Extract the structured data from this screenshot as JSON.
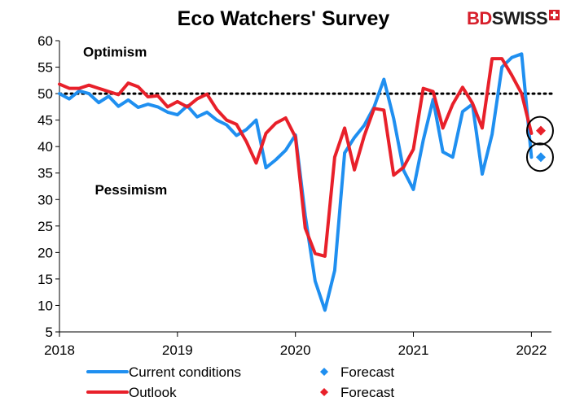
{
  "brand": {
    "logo_bd": "BD",
    "logo_swiss": "SWISS",
    "colors": {
      "red": "#d71f2b",
      "dark": "#1b1b1b"
    }
  },
  "chart_data": {
    "type": "line",
    "title": "Eco Watchers' Survey",
    "xlabel": "",
    "ylabel": "",
    "xlim": [
      2018.0,
      2022.17
    ],
    "ylim": [
      5,
      60
    ],
    "yticks": [
      5,
      10,
      15,
      20,
      25,
      30,
      35,
      40,
      45,
      50,
      55,
      60
    ],
    "xticks": [
      {
        "value": 2018,
        "label": "2018"
      },
      {
        "value": 2019,
        "label": "2019"
      },
      {
        "value": 2020,
        "label": "2020"
      },
      {
        "value": 2021,
        "label": "2021"
      },
      {
        "value": 2022,
        "label": "2022"
      }
    ],
    "reference_line": {
      "y": 50,
      "style": "dotted"
    },
    "annotations": [
      {
        "text": "Optimism",
        "x": 2018.2,
        "y": 57
      },
      {
        "text": "Pessimism",
        "x": 2018.3,
        "y": 31
      }
    ],
    "series": [
      {
        "name": "Current conditions",
        "color": "#1f8ff0",
        "x": [
          2018.0,
          2018.083,
          2018.167,
          2018.25,
          2018.333,
          2018.417,
          2018.5,
          2018.583,
          2018.667,
          2018.75,
          2018.833,
          2018.917,
          2019.0,
          2019.083,
          2019.167,
          2019.25,
          2019.333,
          2019.417,
          2019.5,
          2019.583,
          2019.667,
          2019.75,
          2019.833,
          2019.917,
          2020.0,
          2020.083,
          2020.167,
          2020.25,
          2020.333,
          2020.417,
          2020.5,
          2020.583,
          2020.667,
          2020.75,
          2020.833,
          2020.917,
          2021.0,
          2021.083,
          2021.167,
          2021.25,
          2021.333,
          2021.417,
          2021.5,
          2021.583,
          2021.667,
          2021.75,
          2021.833,
          2021.917,
          2022.0
        ],
        "values": [
          50.0,
          49.0,
          50.5,
          50.0,
          48.3,
          49.5,
          47.6,
          48.8,
          47.4,
          48.0,
          47.5,
          46.5,
          46.0,
          47.7,
          45.6,
          46.5,
          45.0,
          44.1,
          42.1,
          43.2,
          45.0,
          36.0,
          37.5,
          39.3,
          42.2,
          27.0,
          14.6,
          9.1,
          16.6,
          38.8,
          41.7,
          44.0,
          47.5,
          52.7,
          45.3,
          35.5,
          31.9,
          41.2,
          48.9,
          39.0,
          38.0,
          46.6,
          48.0,
          34.8,
          42.3,
          55.0,
          56.8,
          57.5,
          38.0
        ]
      },
      {
        "name": "Outlook",
        "color": "#e8202a",
        "x": [
          2018.0,
          2018.083,
          2018.167,
          2018.25,
          2018.333,
          2018.417,
          2018.5,
          2018.583,
          2018.667,
          2018.75,
          2018.833,
          2018.917,
          2019.0,
          2019.083,
          2019.167,
          2019.25,
          2019.333,
          2019.417,
          2019.5,
          2019.583,
          2019.667,
          2019.75,
          2019.833,
          2019.917,
          2020.0,
          2020.083,
          2020.167,
          2020.25,
          2020.333,
          2020.417,
          2020.5,
          2020.583,
          2020.667,
          2020.75,
          2020.833,
          2020.917,
          2021.0,
          2021.083,
          2021.167,
          2021.25,
          2021.333,
          2021.417,
          2021.5,
          2021.583,
          2021.667,
          2021.75,
          2021.833,
          2021.917,
          2022.0
        ],
        "values": [
          51.8,
          51.0,
          51.0,
          51.6,
          51.0,
          50.4,
          49.8,
          52.0,
          51.3,
          49.4,
          49.6,
          47.5,
          48.5,
          47.5,
          49.0,
          49.9,
          47.0,
          45.0,
          44.2,
          41.0,
          36.9,
          42.5,
          44.4,
          45.4,
          41.8,
          24.6,
          19.8,
          19.3,
          38.0,
          43.5,
          35.6,
          42.0,
          47.2,
          46.9,
          34.6,
          36.1,
          39.5,
          51.0,
          50.4,
          43.5,
          48.0,
          51.2,
          48.2,
          43.5,
          56.6,
          56.6,
          53.5,
          50.0,
          42.5
        ]
      }
    ],
    "forecast_points": [
      {
        "name": "Forecast",
        "series": "Current conditions",
        "x": 2022.08,
        "value": 38.0,
        "color": "#1f8ff0",
        "marker": "diamond",
        "circled": true
      },
      {
        "name": "Forecast",
        "series": "Outlook",
        "x": 2022.08,
        "value": 43.0,
        "color": "#e8202a",
        "marker": "diamond",
        "circled": true
      }
    ],
    "legend": {
      "placement": "bottom",
      "entries": [
        {
          "label": "Current conditions",
          "kind": "line",
          "color": "#1f8ff0"
        },
        {
          "label": "Forecast",
          "kind": "diamond",
          "color": "#1f8ff0"
        },
        {
          "label": "Outlook",
          "kind": "line",
          "color": "#e8202a"
        },
        {
          "label": "Forecast",
          "kind": "diamond",
          "color": "#e8202a"
        }
      ]
    }
  }
}
